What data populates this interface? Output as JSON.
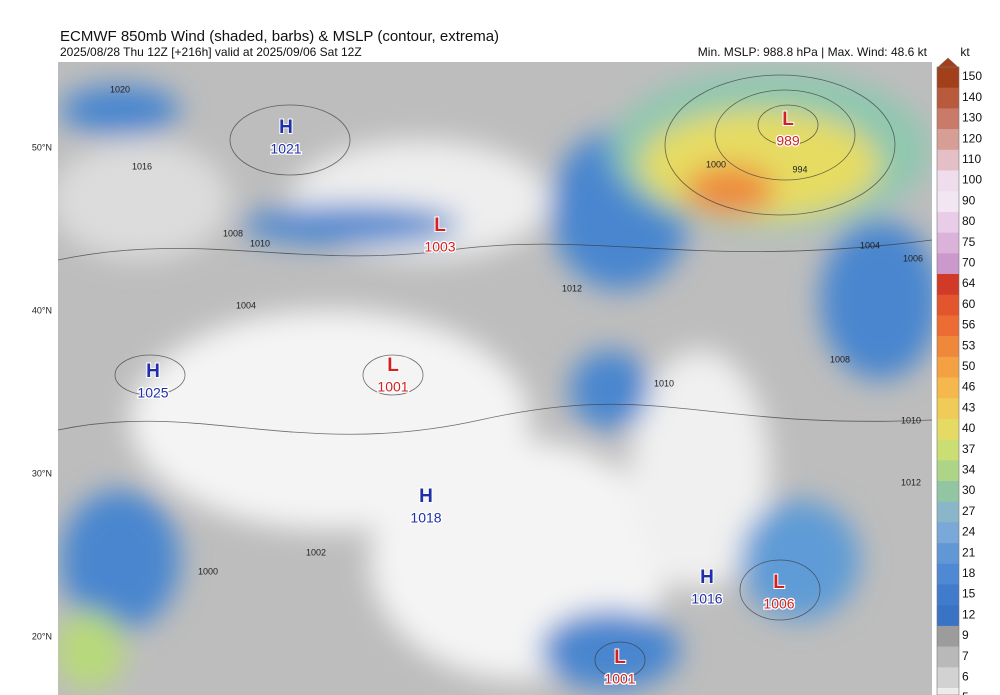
{
  "header": {
    "title": "ECMWF 850mb Wind (shaded, barbs) & MSLP (contour, extrema)",
    "subtitle": "2025/08/28 Thu 12Z [+216h] valid at 2025/09/06 Sat 12Z",
    "stats": "Min. MSLP: 988.8 hPa | Max. Wind: 48.6 kt"
  },
  "colorbar": {
    "unit": "kt",
    "levels": [
      150,
      140,
      130,
      120,
      110,
      100,
      90,
      80,
      75,
      70,
      64,
      60,
      56,
      53,
      50,
      46,
      43,
      40,
      37,
      34,
      30,
      27,
      24,
      21,
      18,
      15,
      12,
      9,
      7,
      6,
      5
    ],
    "colors": [
      "#a3401c",
      "#b95a3c",
      "#c97a68",
      "#d79e96",
      "#e4c0c6",
      "#efdcec",
      "#f3e6f3",
      "#e8cce8",
      "#dab2da",
      "#cb99cb",
      "#d23a28",
      "#e2552d",
      "#ec6c34",
      "#f0883b",
      "#f3a143",
      "#f4b84c",
      "#f0cb57",
      "#e5da63",
      "#cbde74",
      "#aed587",
      "#92c6a3",
      "#89b7c9",
      "#7aa8d9",
      "#6297d6",
      "#4f88d3",
      "#417bcb",
      "#3a72c4",
      "#9c9c9c",
      "#b9b9b9",
      "#d2d2d2",
      "#ececec"
    ]
  },
  "map": {
    "latitudes": [
      "50°N",
      "40°N",
      "30°N",
      "20°N"
    ],
    "centers": [
      {
        "type": "H",
        "pressure": 1021
      },
      {
        "type": "L",
        "pressure": 1003
      },
      {
        "type": "L",
        "pressure": 989
      },
      {
        "type": "H",
        "pressure": 1025
      },
      {
        "type": "L",
        "pressure": 1001
      },
      {
        "type": "H",
        "pressure": 1018
      },
      {
        "type": "H",
        "pressure": 1016
      },
      {
        "type": "L",
        "pressure": 1006
      },
      {
        "type": "L",
        "pressure": 1001
      }
    ],
    "contour_labels": [
      "1020",
      "1016",
      "1010",
      "1008",
      "1004",
      "1012",
      "1010",
      "994",
      "1000",
      "1004",
      "1006",
      "1008",
      "1010",
      "1012",
      "1002",
      "1000"
    ]
  }
}
